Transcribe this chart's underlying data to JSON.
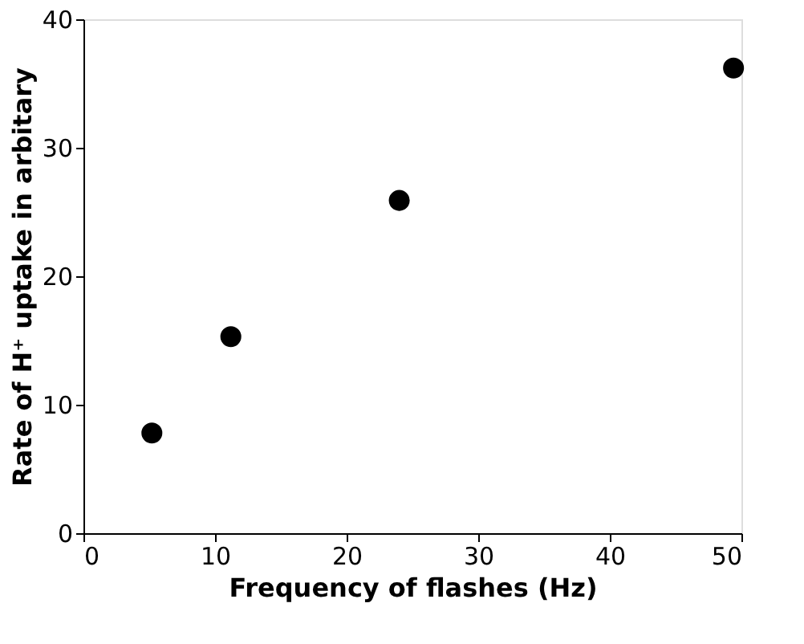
{
  "chart_data": {
    "type": "scatter",
    "xlabel": "Frequency of flashes (Hz)",
    "ylabel": "Rate of H⁺ uptake in arbitary",
    "x": [
      5.2,
      11.2,
      24.0,
      49.4
    ],
    "series": [
      {
        "color": "#000000",
        "values": [
          7.8,
          15.3,
          25.9,
          36.2
        ]
      }
    ],
    "xlim": [
      0,
      50
    ],
    "xticks": [
      0,
      10,
      20,
      30,
      40,
      50
    ],
    "ylim": [
      0,
      40
    ],
    "yticks": [
      0,
      10,
      20,
      30,
      40
    ],
    "marker": "circle",
    "grid": false
  }
}
